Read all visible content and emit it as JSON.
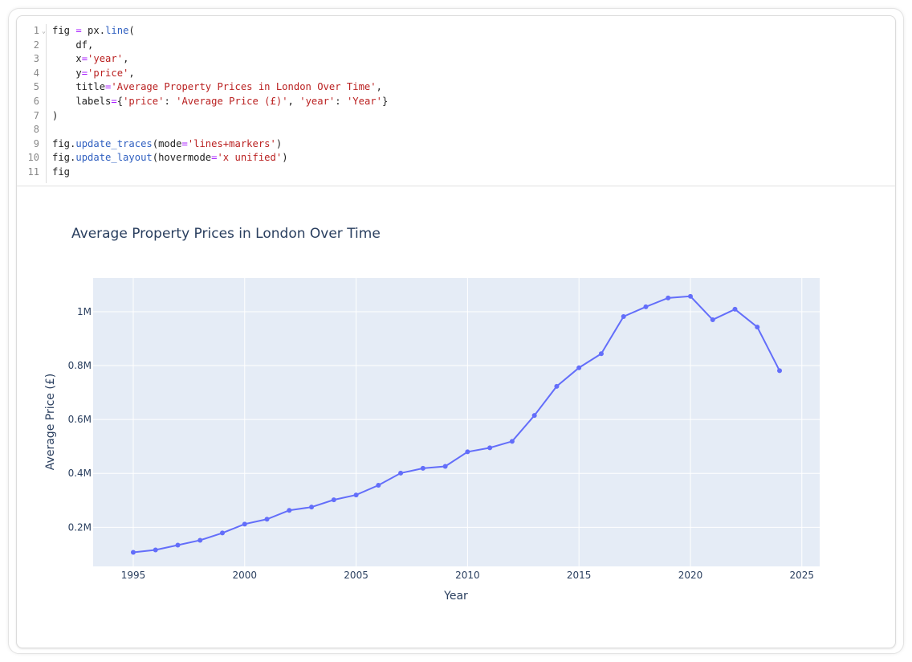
{
  "code": {
    "line_numbers": [
      "1",
      "2",
      "3",
      "4",
      "5",
      "6",
      "7",
      "8",
      "9",
      "10",
      "11"
    ],
    "lines": [
      [
        [
          "fig ",
          ""
        ],
        [
          "=",
          "o"
        ],
        [
          " px.",
          ""
        ],
        [
          "line",
          "f"
        ],
        [
          "(",
          ""
        ]
      ],
      [
        [
          "    df,",
          ""
        ]
      ],
      [
        [
          "    x",
          ""
        ],
        [
          "=",
          "o"
        ],
        [
          "'year'",
          "s"
        ],
        [
          ",",
          ""
        ]
      ],
      [
        [
          "    y",
          ""
        ],
        [
          "=",
          "o"
        ],
        [
          "'price'",
          "s"
        ],
        [
          ",",
          ""
        ]
      ],
      [
        [
          "    title",
          ""
        ],
        [
          "=",
          "o"
        ],
        [
          "'Average Property Prices in London Over Time'",
          "s"
        ],
        [
          ",",
          ""
        ]
      ],
      [
        [
          "    labels",
          ""
        ],
        [
          "=",
          "o"
        ],
        [
          "{",
          ""
        ],
        [
          "'price'",
          "s"
        ],
        [
          ": ",
          ""
        ],
        [
          "'Average Price (£)'",
          "s"
        ],
        [
          ", ",
          ""
        ],
        [
          "'year'",
          "s"
        ],
        [
          ": ",
          ""
        ],
        [
          "'Year'",
          "s"
        ],
        [
          "}",
          ""
        ]
      ],
      [
        [
          ")",
          ""
        ]
      ],
      [
        [
          "",
          ""
        ]
      ],
      [
        [
          "fig.",
          ""
        ],
        [
          "update_traces",
          "f"
        ],
        [
          "(mode",
          ""
        ],
        [
          "=",
          "o"
        ],
        [
          "'lines+markers'",
          "s"
        ],
        [
          ")",
          ""
        ]
      ],
      [
        [
          "fig.",
          ""
        ],
        [
          "update_layout",
          "f"
        ],
        [
          "(hovermode",
          ""
        ],
        [
          "=",
          "o"
        ],
        [
          "'x unified'",
          "s"
        ],
        [
          ")",
          ""
        ]
      ],
      [
        [
          "fig",
          ""
        ]
      ]
    ]
  },
  "colors": {
    "line": "#636efa",
    "plot_bg": "#e5ecf6",
    "text": "#2a3f5f"
  },
  "chart_data": {
    "type": "line",
    "mode": "lines+markers",
    "title": "Average Property Prices in London Over Time",
    "xlabel": "Year",
    "ylabel": "Average Price (£)",
    "x_ticks": [
      "1995",
      "2000",
      "2005",
      "2010",
      "2015",
      "2020",
      "2025"
    ],
    "y_ticks": [
      "0.2M",
      "0.4M",
      "0.6M",
      "0.8M",
      "1M"
    ],
    "xlim": [
      1993.2,
      2025.8
    ],
    "ylim": [
      0.055,
      1.125
    ],
    "grid": true,
    "x": [
      1995,
      1996,
      1997,
      1998,
      1999,
      2000,
      2001,
      2002,
      2003,
      2004,
      2005,
      2006,
      2007,
      2008,
      2009,
      2010,
      2011,
      2012,
      2013,
      2014,
      2015,
      2016,
      2017,
      2018,
      2019,
      2020,
      2021,
      2022,
      2023,
      2024
    ],
    "y_millions": [
      0.107,
      0.116,
      0.134,
      0.152,
      0.179,
      0.212,
      0.23,
      0.263,
      0.275,
      0.302,
      0.32,
      0.356,
      0.401,
      0.419,
      0.426,
      0.48,
      0.495,
      0.519,
      0.615,
      0.723,
      0.792,
      0.844,
      0.982,
      1.018,
      1.051,
      1.057,
      0.97,
      1.009,
      0.943,
      0.781
    ]
  }
}
